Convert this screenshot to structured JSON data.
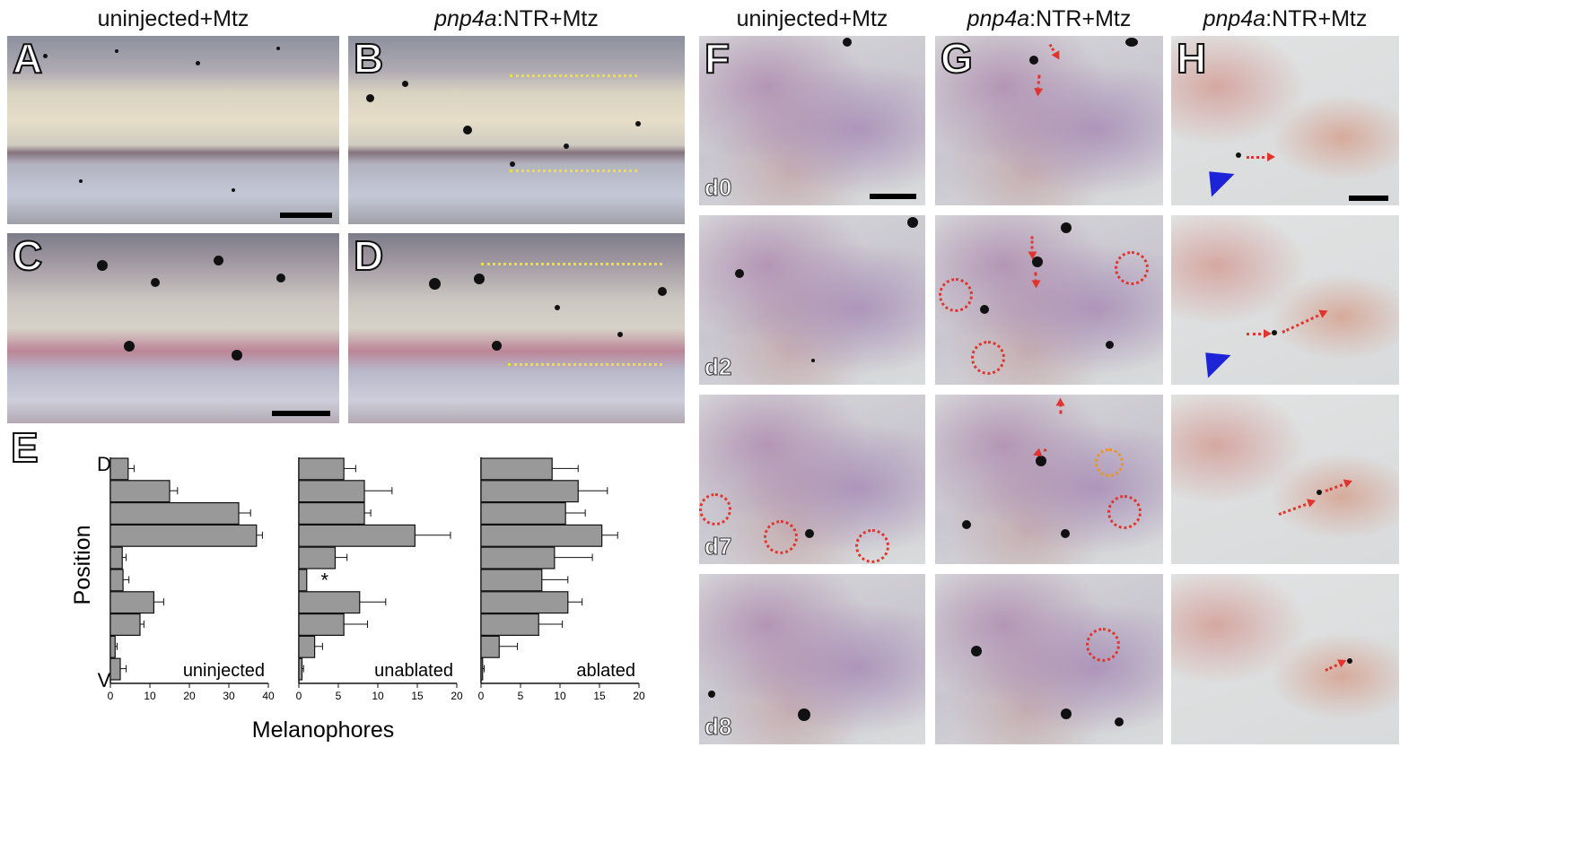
{
  "headers": {
    "col1": "uninjected+Mtz",
    "col2_italic": "pnp4a",
    "col2_rest": ":NTR+Mtz",
    "col3": "uninjected+Mtz",
    "col4_italic": "pnp4a",
    "col4_rest": ":NTR+Mtz",
    "col5_italic": "pnp4a",
    "col5_rest": ":NTR+Mtz"
  },
  "panel_letters": {
    "A": "A",
    "B": "B",
    "C": "C",
    "D": "D",
    "E": "E",
    "F": "F",
    "G": "G",
    "H": "H"
  },
  "days": [
    "d0",
    "d2",
    "d7",
    "d8"
  ],
  "colors": {
    "bar_fill": "#999999",
    "bar_stroke": "#111111",
    "ring": "#e0342c",
    "ring_alt": "#e8962a",
    "arrowhead": "#1d24d8",
    "guide_line": "#e8e23a"
  },
  "chart_data": [
    {
      "type": "bar",
      "orientation": "horizontal",
      "title": "uninjected",
      "xlabel": "Melanophores",
      "ylabel": "Position",
      "ytick_top": "D",
      "ytick_bottom": "V",
      "xlim": [
        0,
        40
      ],
      "xticks": [
        "0",
        "10",
        "20",
        "30",
        "40"
      ],
      "values": [
        4.5,
        15,
        32.5,
        37,
        3,
        3.2,
        11,
        7.5,
        1.2,
        2.5
      ],
      "errors": [
        1.5,
        2.0,
        3.0,
        1.5,
        1.0,
        1.5,
        2.5,
        1.0,
        0.5,
        1.5
      ],
      "annotation": ""
    },
    {
      "type": "bar",
      "orientation": "horizontal",
      "title": "unablated",
      "xlim": [
        0,
        20
      ],
      "xticks": [
        "0",
        "5",
        "10",
        "15",
        "20"
      ],
      "values": [
        5.7,
        8.3,
        8.3,
        14.7,
        4.6,
        1.0,
        7.7,
        5.7,
        2.0,
        0.4
      ],
      "errors": [
        1.5,
        3.5,
        0.8,
        4.5,
        1.5,
        0.0,
        3.3,
        3.0,
        1.0,
        0.2
      ],
      "annotation": "*"
    },
    {
      "type": "bar",
      "orientation": "horizontal",
      "title": "ablated",
      "xlim": [
        0,
        20
      ],
      "xticks": [
        "0",
        "5",
        "10",
        "15",
        "20"
      ],
      "values": [
        9.0,
        12.3,
        10.7,
        15.3,
        9.3,
        7.7,
        11.0,
        7.3,
        2.3,
        0.2
      ],
      "errors": [
        3.3,
        3.7,
        2.5,
        2.0,
        4.8,
        3.3,
        1.8,
        3.0,
        2.3,
        0.2
      ],
      "annotation": ""
    }
  ]
}
